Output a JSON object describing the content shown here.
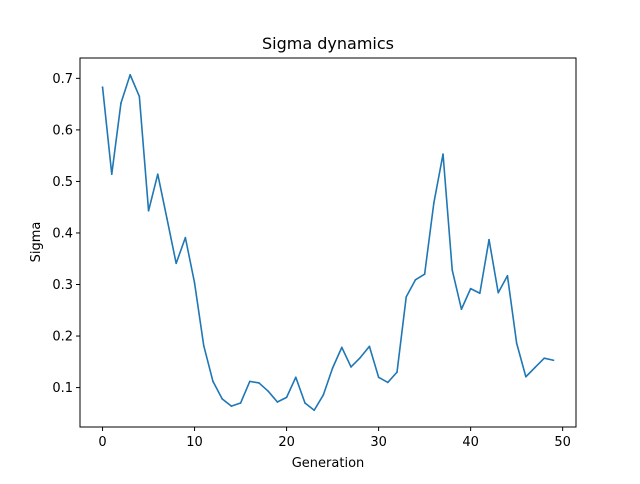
{
  "chart_data": {
    "type": "line",
    "title": "Sigma dynamics",
    "xlabel": "Generation",
    "ylabel": "Sigma",
    "xlim": [
      -2.45,
      51.45
    ],
    "ylim": [
      0.0235,
      0.7395
    ],
    "xticks": [
      0,
      10,
      20,
      30,
      40,
      50
    ],
    "yticks": [
      0.1,
      0.2,
      0.3,
      0.4,
      0.5,
      0.6,
      0.7
    ],
    "grid": false,
    "series": [
      {
        "color": "#1f77b4",
        "x": [
          0,
          1,
          2,
          3,
          4,
          5,
          6,
          7,
          8,
          9,
          10,
          11,
          12,
          13,
          14,
          15,
          16,
          17,
          18,
          19,
          20,
          21,
          22,
          23,
          24,
          25,
          26,
          27,
          28,
          29,
          30,
          31,
          32,
          33,
          34,
          35,
          36,
          37,
          38,
          39,
          40,
          41,
          42,
          43,
          44,
          45,
          46,
          47,
          48,
          49
        ],
        "y": [
          0.683,
          0.514,
          0.652,
          0.707,
          0.665,
          0.443,
          0.514,
          0.428,
          0.341,
          0.391,
          0.303,
          0.181,
          0.112,
          0.078,
          0.064,
          0.07,
          0.112,
          0.109,
          0.093,
          0.072,
          0.081,
          0.12,
          0.07,
          0.056,
          0.086,
          0.138,
          0.178,
          0.14,
          0.158,
          0.18,
          0.12,
          0.11,
          0.13,
          0.276,
          0.309,
          0.32,
          0.458,
          0.553,
          0.328,
          0.252,
          0.292,
          0.283,
          0.387,
          0.284,
          0.317,
          0.186,
          0.121,
          0.139,
          0.157,
          0.153
        ]
      }
    ]
  }
}
